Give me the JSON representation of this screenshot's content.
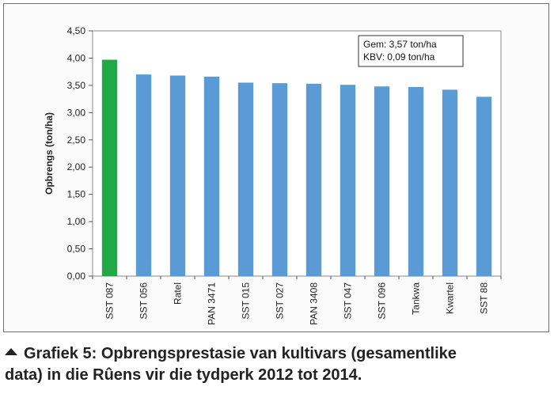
{
  "chart_data": {
    "type": "bar",
    "title": "",
    "xlabel": "",
    "ylabel": "Opbrengs (ton/ha)",
    "ylim": [
      0,
      4.5
    ],
    "yticks": [
      "0,00",
      "0,50",
      "1,00",
      "1,50",
      "2,00",
      "2,50",
      "3,00",
      "3,50",
      "4,00",
      "4,50"
    ],
    "categories": [
      "SST 087",
      "SST 056",
      "Ratel",
      "PAN 3471",
      "SST 015",
      "SST 027",
      "PAN 3408",
      "SST 047",
      "SST 096",
      "Tankwa",
      "Kwartel",
      "SST 88"
    ],
    "values": [
      3.97,
      3.7,
      3.68,
      3.66,
      3.55,
      3.54,
      3.53,
      3.51,
      3.48,
      3.47,
      3.42,
      3.29
    ],
    "bar_colors": [
      "#22a846",
      "#5b9bd5",
      "#5b9bd5",
      "#5b9bd5",
      "#5b9bd5",
      "#5b9bd5",
      "#5b9bd5",
      "#5b9bd5",
      "#5b9bd5",
      "#5b9bd5",
      "#5b9bd5",
      "#5b9bd5"
    ],
    "grid": false,
    "annotations": [
      "Gem: 3,57 ton/ha",
      "KBV: 0,09 ton/ha"
    ]
  },
  "caption": {
    "icon": "triangle-up-icon",
    "line1": "Grafiek 5: Opbrengsprestasie van kultivars (gesamentlike",
    "line2": "data) in die Rûens vir die tydperk 2012 tot 2014."
  }
}
